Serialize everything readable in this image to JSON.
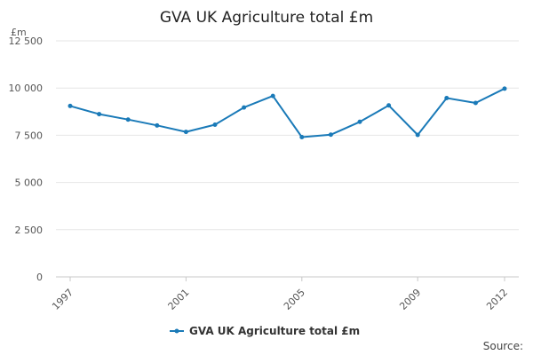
{
  "chart_data": {
    "type": "line",
    "title": "GVA UK Agriculture total £m",
    "y_unit_label": "£m",
    "xlabel": "",
    "ylabel": "",
    "x": [
      1997,
      1998,
      1999,
      2000,
      2001,
      2002,
      2003,
      2004,
      2005,
      2006,
      2007,
      2008,
      2009,
      2010,
      2011,
      2012
    ],
    "x_tick_labels": [
      "1997",
      "2001",
      "2005",
      "2009",
      "2012"
    ],
    "x_tick_values": [
      1997,
      2001,
      2005,
      2009,
      2012
    ],
    "xlim": [
      1997,
      2012
    ],
    "y_tick_values": [
      0,
      2500,
      5000,
      7500,
      10000,
      12500
    ],
    "y_tick_labels": [
      "0",
      "2 500",
      "5 000",
      "7 500",
      "10 000",
      "12 500"
    ],
    "ylim": [
      0,
      12500
    ],
    "grid": true,
    "legend_position": "bottom-center",
    "series": [
      {
        "name": "GVA UK Agriculture total £m",
        "color": "#1a7ab8",
        "values": [
          9050,
          8620,
          8330,
          8020,
          7680,
          8060,
          8970,
          9580,
          7400,
          7530,
          8210,
          9080,
          7520,
          9470,
          9210,
          9970
        ]
      }
    ],
    "source_label": "Source:"
  }
}
